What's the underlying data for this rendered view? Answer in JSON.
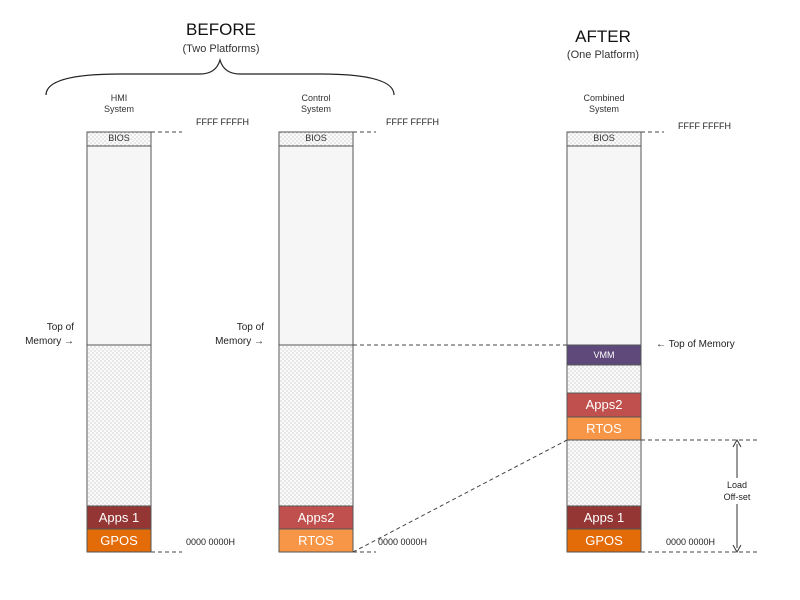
{
  "before": {
    "title": "BEFORE",
    "subtitle": "(Two Platforms)"
  },
  "after": {
    "title": "AFTER",
    "subtitle": "(One Platform)"
  },
  "hmi": {
    "label_line1": "HMI",
    "label_line2": "System",
    "bios": "BIOS",
    "apps": "Apps 1",
    "os": "GPOS",
    "top_addr": "FFFF FFFFH",
    "bottom_addr": "0000 0000H",
    "top_of_memory_line1": "Top of",
    "top_of_memory_line2": "Memory →"
  },
  "control": {
    "label_line1": "Control",
    "label_line2": "System",
    "bios": "BIOS",
    "apps": "Apps2",
    "os": "RTOS",
    "top_addr": "FFFF FFFFH",
    "bottom_addr": "0000 0000H",
    "top_of_memory_line1": "Top of",
    "top_of_memory_line2": "Memory →"
  },
  "combined": {
    "label_line1": "Combined",
    "label_line2": "System",
    "bios": "BIOS",
    "vmm": "VMM",
    "apps2": "Apps2",
    "rtos": "RTOS",
    "apps1": "Apps 1",
    "gpos": "GPOS",
    "top_addr": "FFFF FFFFH",
    "bottom_addr": "0000 0000H",
    "top_of_memory": "←  Top of Memory",
    "load_offset_line1": "Load",
    "load_offset_line2": "Off-set"
  },
  "colors": {
    "apps1": "#943634",
    "apps2": "#C0504D",
    "os_orange": "#E36C09",
    "rtos_light": "#F79646",
    "vmm": "#5F497A"
  }
}
